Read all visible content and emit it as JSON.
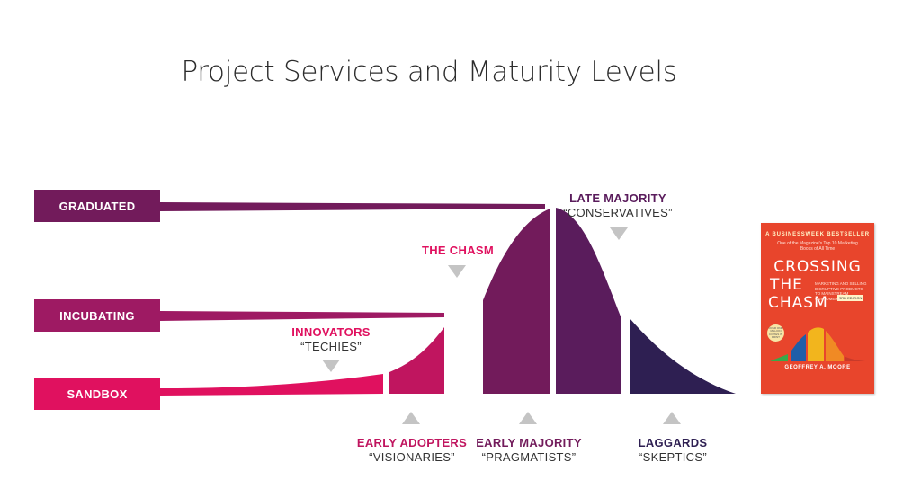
{
  "title": "Project Services and Maturity Levels",
  "levels": [
    {
      "label": "GRADUATED",
      "color": "#721b5b"
    },
    {
      "label": "INCUBATING",
      "color": "#9e1a63"
    },
    {
      "label": "SANDBOX",
      "color": "#e0115f"
    }
  ],
  "segments": [
    {
      "name": "INNOVATORS",
      "alias": "“TECHIES”",
      "color": "#e0115f"
    },
    {
      "name": "EARLY ADOPTERS",
      "alias": "“VISIONARIES”",
      "color": "#c0155f"
    },
    {
      "name": "THE CHASM",
      "alias": "",
      "color": "#e0115f"
    },
    {
      "name": "EARLY MAJORITY",
      "alias": "“PRAGMATISTS”",
      "color": "#721b5b"
    },
    {
      "name": "LATE MAJORITY",
      "alias": "“CONSERVATIVES”",
      "color": "#5a1c5c"
    },
    {
      "name": "LAGGARDS",
      "alias": "“SKEPTICS”",
      "color": "#2e1f52"
    }
  ],
  "book": {
    "bestseller": "A BUSINESSWEEK BESTSELLER",
    "tagline": "One of the Magazine's Top 10 Marketing Books of All Time",
    "title_line1": "CROSSING",
    "title_line2": "THE",
    "title_line3": "CHASM",
    "edition": "3RD EDITION",
    "subtitle": "MARKETING AND SELLING DISRUPTIVE PRODUCTS TO MAINSTREAM CUSTOMERS",
    "seal": "OVER ONE MILLION COPIES IN PRINT",
    "author": "GEOFFREY A. MOORE",
    "cover_color": "#e8452c"
  }
}
